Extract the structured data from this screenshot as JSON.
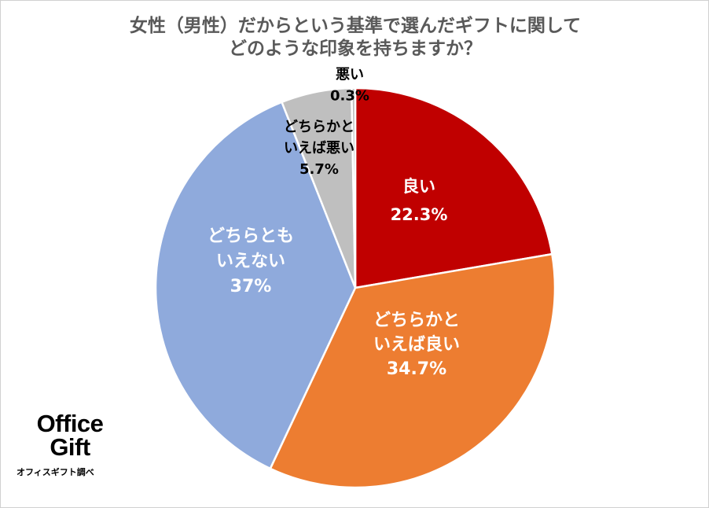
{
  "title_lines": [
    "女性（男性）だからという基準で選んだギフトに関して",
    "どのような印象を持ちますか？"
  ],
  "chart_data": {
    "type": "pie",
    "title": "女性（男性）だからという基準で選んだギフトに関して どのような印象を持ちますか？",
    "slices": [
      {
        "name_lines": [
          "良い"
        ],
        "label": "22.3%",
        "value": 22.3,
        "color": "#c00000",
        "text_color": "#ffffff"
      },
      {
        "name_lines": [
          "どちらかと",
          "いえば良い"
        ],
        "label": "34.7%",
        "value": 34.7,
        "color": "#ed7d31",
        "text_color": "#ffffff"
      },
      {
        "name_lines": [
          "どちらとも",
          "いえない"
        ],
        "label": "37%",
        "value": 37,
        "color": "#8faadc",
        "text_color": "#ffffff"
      },
      {
        "name_lines": [
          "どちらかと",
          "いえば悪い"
        ],
        "label": "5.7%",
        "value": 5.7,
        "color": "#bfbfbf",
        "text_color": "#000000"
      },
      {
        "name_lines": [
          "悪い"
        ],
        "label": "0.3%",
        "value": 0.3,
        "color": "#bfbfbf",
        "text_color": "#000000"
      }
    ],
    "start_angle": "12 o'clock",
    "direction": "clockwise",
    "legend": "none"
  },
  "logo": {
    "line1": "Office",
    "line2": "Gift"
  },
  "source": "オフィスギフト調べ"
}
